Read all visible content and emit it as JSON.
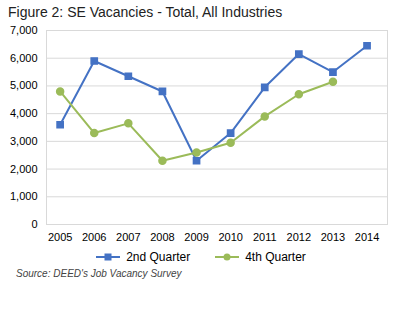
{
  "chart_data": {
    "type": "line",
    "title": "Figure 2: SE Vacancies - Total, All Industries",
    "source": "Source: DEED's Job Vacancy Survey",
    "x": [
      2005,
      2006,
      2007,
      2008,
      2009,
      2010,
      2011,
      2012,
      2013,
      2014
    ],
    "series": [
      {
        "name": "2nd Quarter",
        "color": "#4472c4",
        "marker": "square",
        "values": [
          3600,
          5900,
          5350,
          4800,
          2300,
          3300,
          4950,
          6150,
          5500,
          6450
        ]
      },
      {
        "name": "4th Quarter",
        "color": "#9bbb59",
        "marker": "circle",
        "values": [
          4800,
          3300,
          3650,
          2300,
          2600,
          2950,
          3900,
          4700,
          5150,
          null
        ]
      }
    ],
    "xlim": [
      2004.6,
      2014.6
    ],
    "xticks": [
      2005,
      2006,
      2007,
      2008,
      2009,
      2010,
      2011,
      2012,
      2013,
      2014
    ],
    "ylim": [
      0,
      7000
    ],
    "yticks": [
      0,
      {
        "value": 1000,
        "label": "1,000"
      },
      {
        "value": 2000,
        "label": "2,000"
      },
      {
        "value": 3000,
        "label": "3,000"
      },
      {
        "value": 4000,
        "label": "4,000"
      },
      {
        "value": 5000,
        "label": "5,000"
      },
      {
        "value": 6000,
        "label": "6,000"
      },
      {
        "value": 7000,
        "label": "7,000"
      }
    ],
    "grid": "y",
    "legend": "bottom"
  }
}
